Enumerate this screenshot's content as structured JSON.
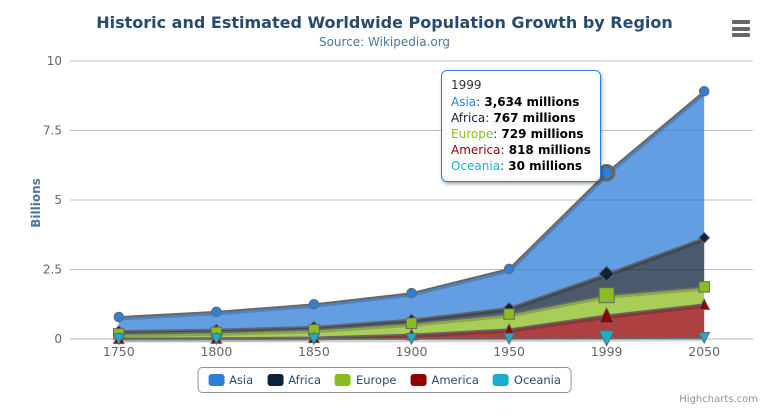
{
  "credits": "Highcharts.com",
  "colors": {
    "title": "#274b6d",
    "subtitle": "#4d759e",
    "axis_label": "#666666",
    "grid_line": "#c0c0c0",
    "axis_line": "#c0d0e0",
    "series_outline": "#666666",
    "legend_text": "#274b6d",
    "tooltip_border": "#2f7ed8"
  },
  "tooltip": {
    "header": "1999",
    "rows": [
      {
        "series": "Asia",
        "value": "3,634 millions"
      },
      {
        "series": "Africa",
        "value": "767 millions"
      },
      {
        "series": "Europe",
        "value": "729 millions"
      },
      {
        "series": "America",
        "value": "818 millions"
      },
      {
        "series": "Oceania",
        "value": "30 millions"
      }
    ]
  },
  "chart_data": {
    "type": "area",
    "stacking": "normal",
    "title": "Historic and Estimated Worldwide Population Growth by Region",
    "subtitle": "Source: Wikipedia.org",
    "categories": [
      "1750",
      "1800",
      "1850",
      "1900",
      "1950",
      "1999",
      "2050"
    ],
    "series": [
      {
        "name": "Asia",
        "color": "#2f7ed8",
        "marker": "circle",
        "values": [
          502,
          635,
          809,
          947,
          1402,
          3634,
          5268
        ]
      },
      {
        "name": "Africa",
        "color": "#0d233a",
        "marker": "diamond",
        "values": [
          106,
          107,
          111,
          133,
          221,
          767,
          1766
        ]
      },
      {
        "name": "Europe",
        "color": "#8bbc21",
        "marker": "square",
        "values": [
          163,
          203,
          276,
          408,
          547,
          729,
          628
        ]
      },
      {
        "name": "America",
        "color": "#910000",
        "marker": "triangle",
        "values": [
          18,
          31,
          54,
          156,
          339,
          818,
          1201
        ]
      },
      {
        "name": "Oceania",
        "color": "#1aadce",
        "marker": "triangle-down",
        "values": [
          2,
          2,
          2,
          6,
          13,
          30,
          46
        ]
      }
    ],
    "value_unit": "millions",
    "ylabel": "Billions",
    "yticks": [
      0,
      2.5,
      5,
      7.5,
      10
    ],
    "ylim": [
      0,
      10
    ],
    "grid": "horizontal",
    "legend_position": "bottom-center",
    "fill_opacity": 0.75,
    "hover": {
      "category": "1999",
      "series": "Asia"
    }
  }
}
